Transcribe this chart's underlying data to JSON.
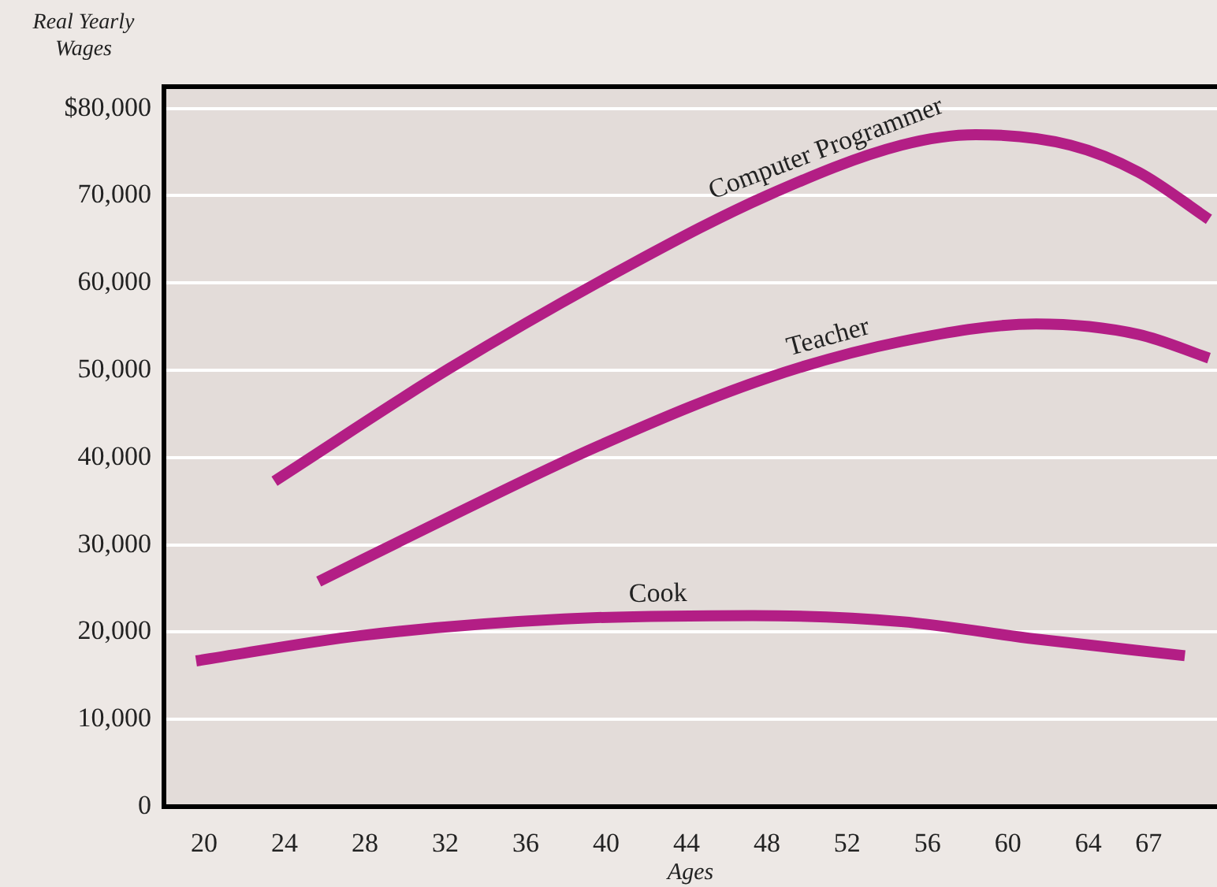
{
  "chart_data": {
    "type": "line",
    "xlabel": "Ages",
    "ylabel": "Real Yearly Wages",
    "xlim": [
      18,
      70.4
    ],
    "xticks": [
      20,
      24,
      28,
      32,
      36,
      40,
      44,
      48,
      52,
      56,
      60,
      64,
      67
    ],
    "ylim": [
      0,
      82500
    ],
    "yticks": [
      0,
      {
        "value": 10000,
        "label": "10,000"
      },
      {
        "value": 20000,
        "label": "20,000"
      },
      {
        "value": 30000,
        "label": "30,000"
      },
      {
        "value": 40000,
        "label": "40,000"
      },
      {
        "value": 50000,
        "label": "50,000"
      },
      {
        "value": 60000,
        "label": "60,000"
      },
      {
        "value": 70000,
        "label": "70,000"
      },
      {
        "value": 80000,
        "label": "$80,000"
      }
    ],
    "grid": "y",
    "legend": false,
    "marker": "none",
    "line_style": "solid",
    "series": [
      {
        "name": "Computer Programmer",
        "color": "#b31e85",
        "x": [
          23.5,
          32.2,
          41.3,
          48.0,
          54.7,
          58.4,
          63.1,
          66.5,
          70.0
        ],
        "values": [
          37300,
          50200,
          62200,
          70000,
          75800,
          77000,
          75800,
          72700,
          67300
        ]
      },
      {
        "name": "Teacher",
        "color": "#b31e85",
        "x": [
          25.7,
          32.2,
          39.6,
          48.0,
          54.7,
          61.4,
          66.5,
          70.0
        ],
        "values": [
          25800,
          33200,
          41300,
          49100,
          53300,
          55300,
          54100,
          51400
        ]
      },
      {
        "name": "Cook",
        "color": "#b31e85",
        "x": [
          19.6,
          27.8,
          37.9,
          47.3,
          54.7,
          61.4,
          68.8
        ],
        "values": [
          16700,
          19600,
          21500,
          21900,
          21200,
          19200,
          17300
        ]
      }
    ]
  }
}
